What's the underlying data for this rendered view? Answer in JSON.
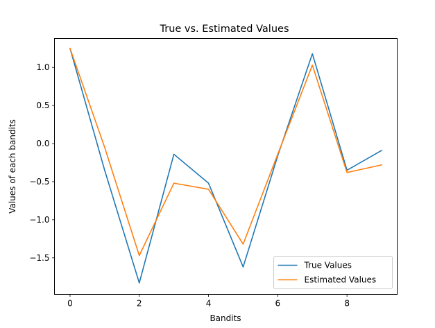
{
  "chart_data": {
    "type": "line",
    "title": "True vs. Estimated Values",
    "xlabel": "Bandits",
    "ylabel": "Values of each bandits",
    "x": [
      0,
      1,
      2,
      3,
      4,
      5,
      6,
      7,
      8,
      9
    ],
    "xlim": [
      -0.45,
      9.45
    ],
    "ylim": [
      -1.98,
      1.38
    ],
    "xticks": [
      0,
      2,
      4,
      6,
      8
    ],
    "xtick_labels": [
      "0",
      "2",
      "4",
      "6",
      "8"
    ],
    "yticks": [
      1.0,
      0.5,
      0.0,
      -0.5,
      -1.0,
      -1.5
    ],
    "ytick_labels": [
      "1.0",
      "0.5",
      "0.0",
      "−0.5",
      "−1.0",
      "−1.5"
    ],
    "grid": false,
    "legend_position": "lower-right",
    "series": [
      {
        "name": "True Values",
        "color": "#1f77b4",
        "values": [
          1.25,
          -0.35,
          -1.83,
          -0.14,
          -0.52,
          -1.62,
          -0.16,
          1.18,
          -0.35,
          -0.09
        ]
      },
      {
        "name": "Estimated Values",
        "color": "#ff7f0e",
        "values": [
          1.25,
          -0.05,
          -1.47,
          -0.52,
          -0.6,
          -1.32,
          -0.14,
          1.03,
          -0.38,
          -0.28
        ]
      }
    ]
  }
}
